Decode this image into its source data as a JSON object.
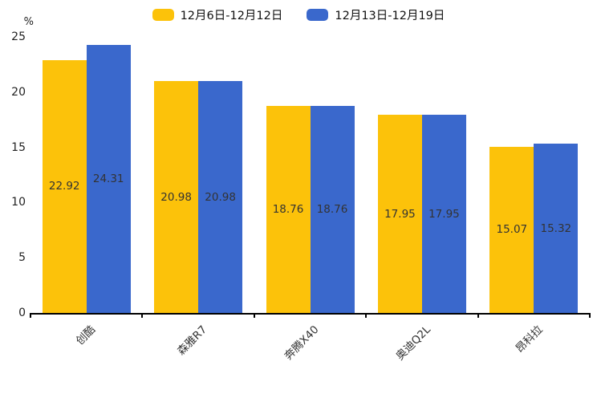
{
  "chart_data": {
    "type": "bar",
    "title": "",
    "categories": [
      "创酷",
      "森雅R7",
      "奔腾X40",
      "奥迪Q2L",
      "昂科拉"
    ],
    "series": [
      {
        "name": "12月6日-12月12日",
        "color": "#FCC20A",
        "values": [
          22.92,
          20.98,
          18.76,
          17.95,
          15.07
        ]
      },
      {
        "name": "12月13日-12月19日",
        "color": "#3A68CC",
        "values": [
          24.31,
          20.98,
          18.76,
          17.95,
          15.32
        ]
      }
    ],
    "xlabel": "",
    "ylabel": "%",
    "ylim": [
      0,
      25
    ],
    "yticks": [
      0,
      5,
      10,
      15,
      20,
      25
    ],
    "grid": false,
    "legend_position": "top",
    "value_labels": "inside-center",
    "x_tick_style": "boundary-ticks, labels rotated 45deg",
    "value_label_color": "#333333",
    "axis_color": "#000000"
  }
}
